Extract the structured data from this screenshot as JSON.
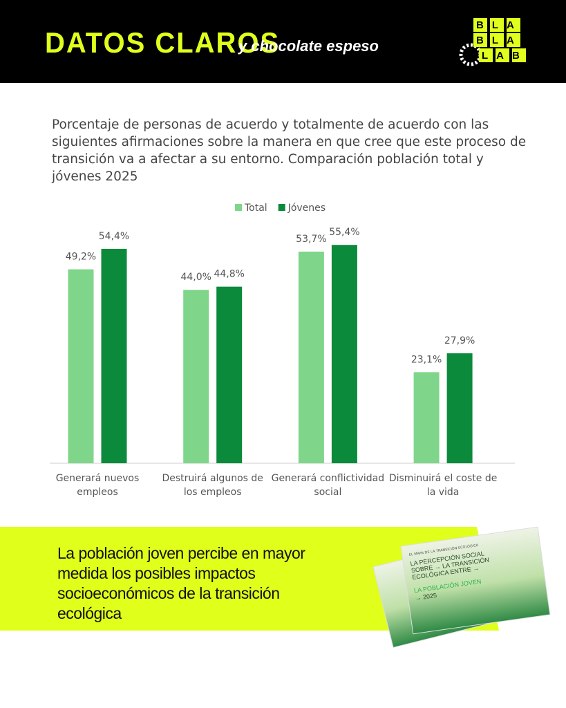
{
  "header": {
    "title": "DATOS CLAROS",
    "tagline": "y chocolate espeso",
    "logo": [
      "BLA",
      "BLA",
      "LAB"
    ]
  },
  "chart_data": {
    "type": "bar",
    "title": "Porcentaje de personas de acuerdo y totalmente de acuerdo con las siguientes afirmaciones sobre la manera en que cree que este proceso de transición va a afectar a su entorno. Comparación población total y jóvenes 2025",
    "categories": [
      "Generará nuevos empleos",
      "Destruirá algunos de los empleos",
      "Generará conflictividad social",
      "Disminuirá el coste de la vida"
    ],
    "series": [
      {
        "name": "Total",
        "color": "#7fd68a",
        "values": [
          49.2,
          44.0,
          53.7,
          23.1
        ],
        "value_labels": [
          "49,2%",
          "44,0%",
          "53,7%",
          "23,1%"
        ]
      },
      {
        "name": "Jóvenes",
        "color": "#0b8a3b",
        "values": [
          54.4,
          44.8,
          55.4,
          27.9
        ],
        "value_labels": [
          "54,4%",
          "44,8%",
          "55,4%",
          "27,9%"
        ]
      }
    ],
    "legend": "top"
  },
  "footer": {
    "text": "La población joven percibe en mayor medida los posibles impactos socioeconómicos de la transición ecológica",
    "book": {
      "series": "EL MAPA DE LA TRANSICIÓN ECOLÓGICA",
      "title": "LA PERCEPCIÓN SOCIAL SOBRE → LA TRANSICIÓN ECOLÓGICA ENTRE →",
      "highlight": "LA POBLACIÓN JOVEN",
      "year": "→ 2025"
    }
  }
}
